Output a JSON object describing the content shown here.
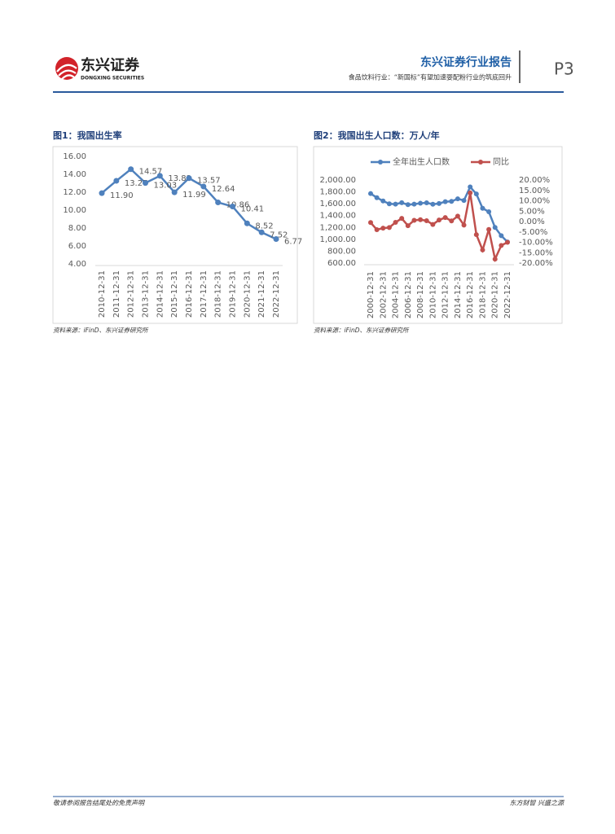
{
  "header": {
    "logo_cn": "东兴证券",
    "logo_en": "DONGXING SECURITIES",
    "title": "东兴证券行业报告",
    "subtitle": "食品饮料行业：“新国标”有望加速婴配粉行业的筑底回升",
    "page": "P3"
  },
  "chart_data": [
    {
      "type": "line",
      "title": "图1：我国出生率",
      "source": "资料来源：iFinD、东兴证券研究所",
      "categories": [
        "2010-12-31",
        "2011-12-31",
        "2012-12-31",
        "2013-12-31",
        "2014-12-31",
        "2015-12-31",
        "2016-12-31",
        "2017-12-31",
        "2018-12-31",
        "2019-12-31",
        "2020-12-31",
        "2021-12-31",
        "2022-12-31"
      ],
      "values": [
        11.9,
        13.27,
        14.57,
        13.03,
        13.83,
        11.99,
        13.57,
        12.64,
        10.86,
        10.41,
        8.52,
        7.52,
        6.77
      ],
      "value_labels": [
        "11.90",
        "13.27",
        "14.57",
        "13.03",
        "13.83",
        "11.99",
        "13.57",
        "12.64",
        "10.86",
        "10.41",
        "8.52",
        "7.52",
        "6.77"
      ],
      "color": "#4f81bd",
      "ylim": [
        4,
        16
      ],
      "yticks": [
        {
          "value": 4,
          "label": "4.00"
        },
        {
          "value": 6,
          "label": "6.00"
        },
        {
          "value": 8,
          "label": "8.00"
        },
        {
          "value": 10,
          "label": "10.00"
        },
        {
          "value": 12,
          "label": "12.00"
        },
        {
          "value": 14,
          "label": "14.00"
        },
        {
          "value": 16,
          "label": "16.00"
        }
      ],
      "grid": false
    },
    {
      "type": "line",
      "title": "图2：我国出生人口数：万人/年",
      "source": "资料来源：iFinD、东兴证券研究所",
      "categories": [
        "2000-12-31",
        null,
        "2002-12-31",
        null,
        "2004-12-31",
        null,
        "2006-12-31",
        null,
        "2008-12-31",
        null,
        "2010-12-31",
        null,
        "2012-12-31",
        null,
        "2014-12-31",
        null,
        "2016-12-31",
        null,
        "2018-12-31",
        null,
        "2020-12-31",
        null,
        "2022-12-31"
      ],
      "series": [
        {
          "name": "全年出生人口数",
          "color": "#4f81bd",
          "values": [
            1771,
            1702,
            1647,
            1599,
            1593,
            1617,
            1584,
            1594,
            1608,
            1615,
            1592,
            1604,
            1635,
            1640,
            1683,
            1655,
            1883,
            1765,
            1523,
            1465,
            1200,
            1062,
            956
          ]
        },
        {
          "name": "同比",
          "color": "#c0504d",
          "axis": "y2",
          "values": [
            -0.5,
            -3.9,
            -3.2,
            -2.9,
            -0.4,
            1.5,
            -2,
            0.6,
            0.9,
            0.4,
            -1.4,
            0.75,
            1.9,
            0.3,
            2.6,
            -1.7,
            13.8,
            -6.3,
            -13.7,
            -3.8,
            -18.1,
            -11.5,
            -10
          ]
        }
      ],
      "ylim": [
        600,
        2000
      ],
      "yticks": [
        {
          "value": 600,
          "label": "600.00"
        },
        {
          "value": 800,
          "label": "800.00"
        },
        {
          "value": 1000,
          "label": "1,000.00"
        },
        {
          "value": 1200,
          "label": "1,200.00"
        },
        {
          "value": 1400,
          "label": "1,400.00"
        },
        {
          "value": 1600,
          "label": "1,600.00"
        },
        {
          "value": 1800,
          "label": "1,800.00"
        },
        {
          "value": 2000,
          "label": "2,000.00"
        }
      ],
      "y2lim": [
        -20,
        20
      ],
      "y2ticks": [
        {
          "value": -20,
          "label": "-20.00%"
        },
        {
          "value": -15,
          "label": "-15.00%"
        },
        {
          "value": -10,
          "label": "-10.00%"
        },
        {
          "value": -5,
          "label": "-5.00%"
        },
        {
          "value": 0,
          "label": "0.00%"
        },
        {
          "value": 5,
          "label": "5.00%"
        },
        {
          "value": 10,
          "label": "10.00%"
        },
        {
          "value": 15,
          "label": "15.00%"
        },
        {
          "value": 20,
          "label": "20.00%"
        }
      ],
      "legend": "top",
      "grid": false
    }
  ],
  "footer": {
    "left": "敬请参阅报告结尾处的免责声明",
    "right": "东方财智 兴盛之源"
  }
}
